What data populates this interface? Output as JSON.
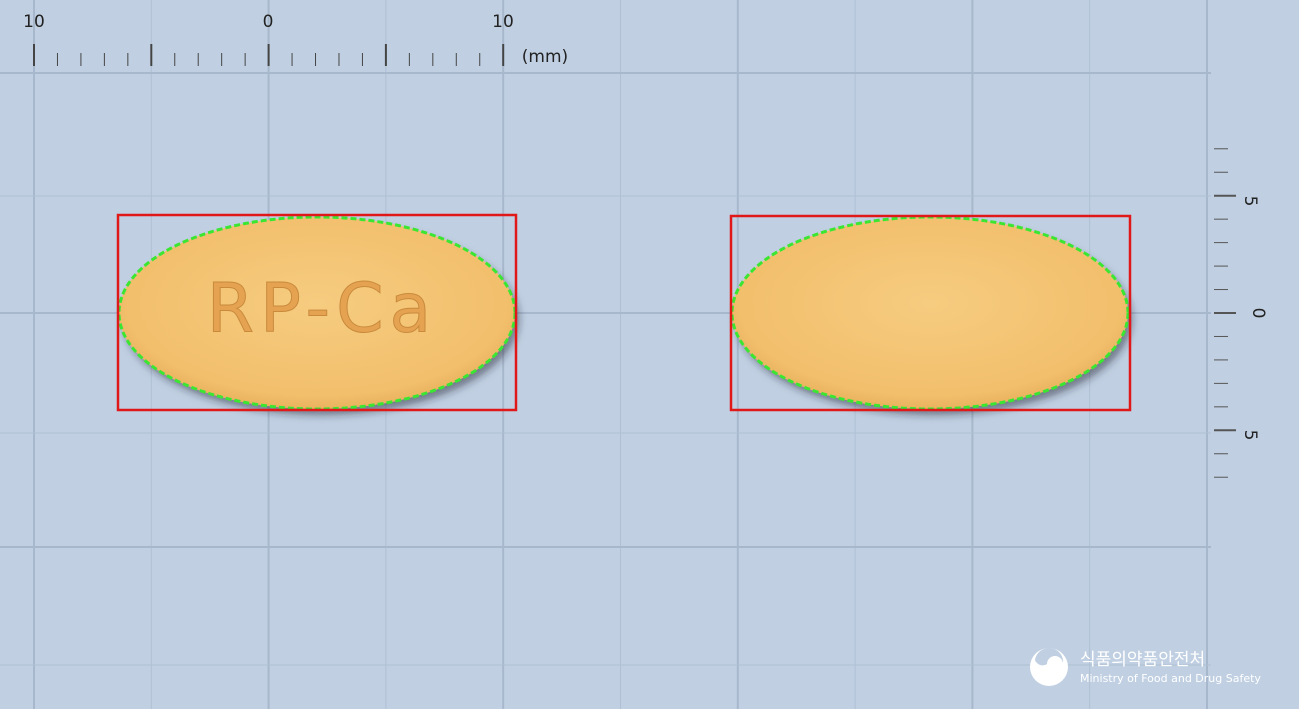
{
  "ruler": {
    "top": {
      "labels": [
        "10",
        "0",
        "10"
      ],
      "unit": "(mm)"
    },
    "right": {
      "labels": [
        "5",
        "0",
        "5"
      ]
    }
  },
  "pills": [
    {
      "imprint": "RP-Ca"
    }
  ],
  "logo": {
    "korean": "식품의약품안전처",
    "english": "Ministry of Food and Drug Safety"
  }
}
